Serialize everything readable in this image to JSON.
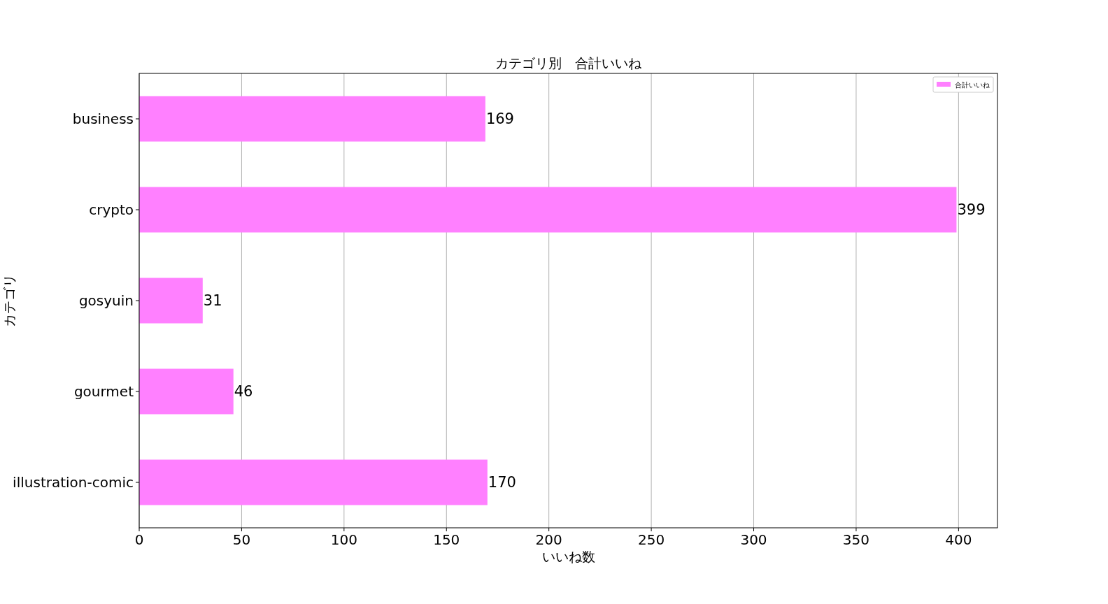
{
  "chart_data": {
    "type": "bar",
    "orientation": "horizontal",
    "title": "カテゴリ別　合計いいね",
    "xlabel": "いいね数",
    "ylabel": "カテゴリ",
    "categories": [
      "business",
      "crypto",
      "gosyuin",
      "gourmet",
      "illustration-comic"
    ],
    "series": [
      {
        "name": "合計いいね",
        "color": "#ff80ff",
        "values": [
          169,
          399,
          31,
          46,
          170
        ]
      }
    ],
    "xlim": [
      0,
      419
    ],
    "xticks": [
      0,
      50,
      100,
      150,
      200,
      250,
      300,
      350,
      400
    ],
    "grid": "x",
    "legend": "top right",
    "data_labels": true
  }
}
